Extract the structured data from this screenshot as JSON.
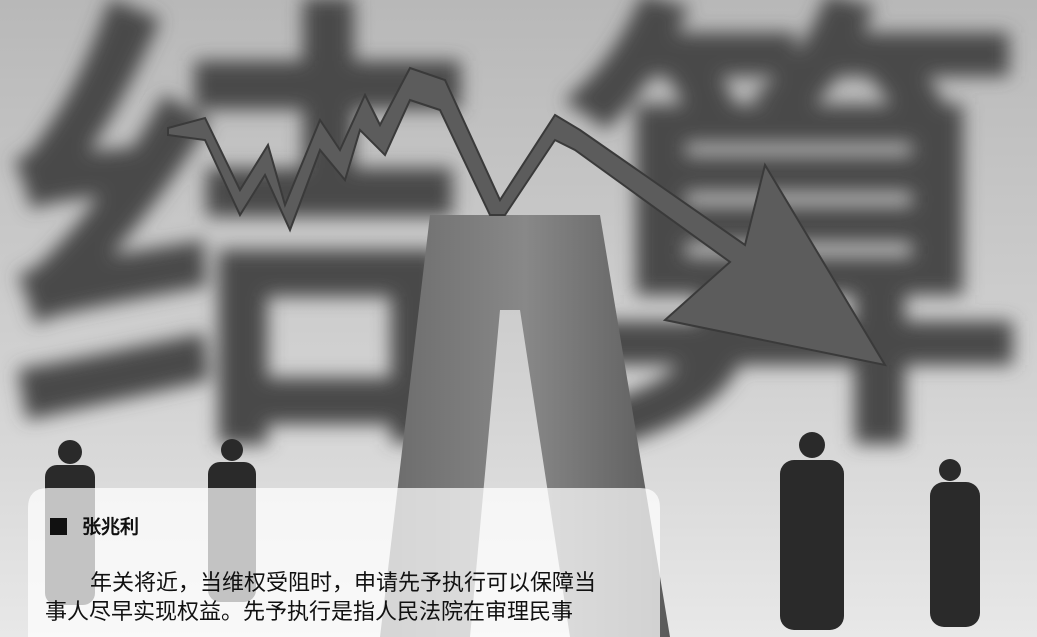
{
  "background_text": [
    "结",
    "算"
  ],
  "byline": "张兆利",
  "body": [
    "年关将近，当维权受阻时，申请先予执行可以保障当",
    "事人尽早实现权益。先予执行是指人民法院在审理民事"
  ]
}
